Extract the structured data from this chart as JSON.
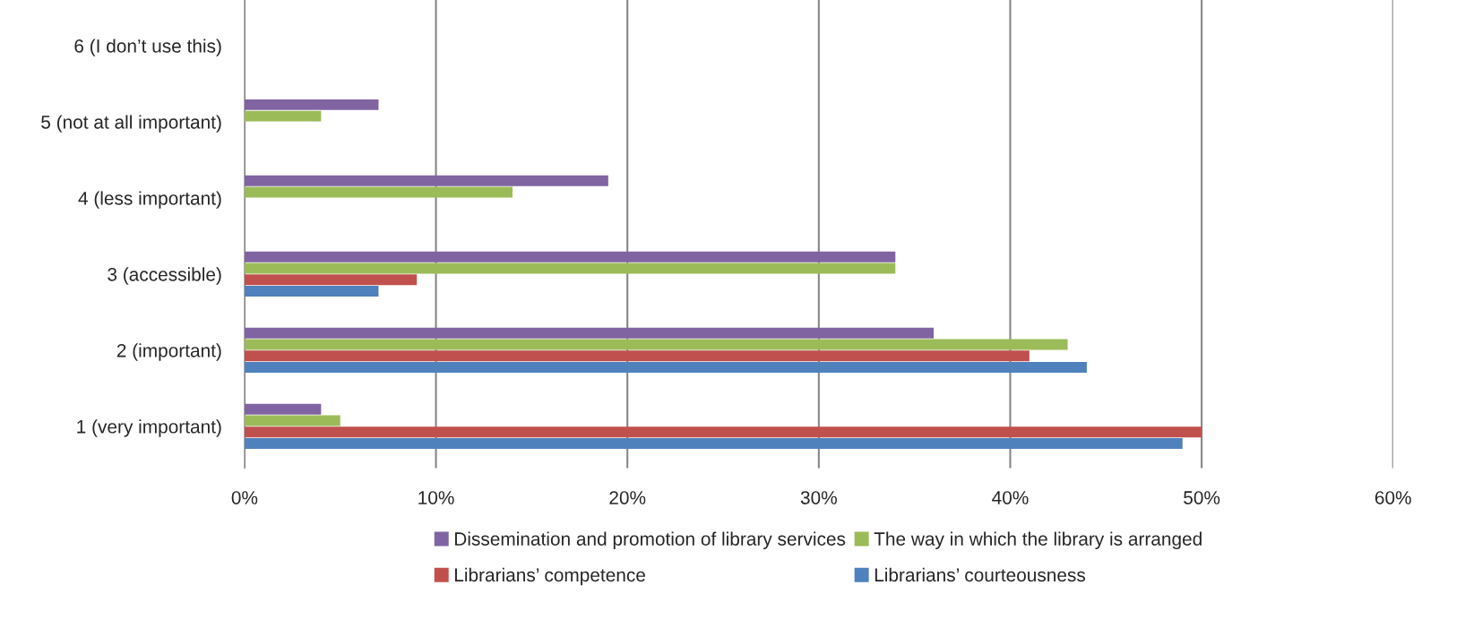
{
  "chart_data": {
    "type": "bar",
    "orientation": "horizontal",
    "categories": [
      "6 (I don’t use this)",
      "5 (not at all important)",
      "4 (less important)",
      "3 (accessible)",
      "2 (important)",
      "1 (very important)"
    ],
    "series": [
      {
        "name": "Dissemination and promotion of library services",
        "color": "#8064a2",
        "values": [
          null,
          7,
          19,
          34,
          36,
          4
        ]
      },
      {
        "name": "The way in which the library is arranged",
        "color": "#9bbb59",
        "values": [
          null,
          4,
          14,
          34,
          43,
          5
        ]
      },
      {
        "name": "Librarians’ competence",
        "color": "#c0504d",
        "values": [
          null,
          null,
          null,
          9,
          41,
          50
        ]
      },
      {
        "name": "Librarians’ courteousness",
        "color": "#4f81bd",
        "values": [
          null,
          null,
          null,
          7,
          44,
          49
        ]
      }
    ],
    "xlim": [
      0,
      60
    ],
    "xticks": [
      {
        "value": 0,
        "label": "0%"
      },
      {
        "value": 10,
        "label": "10%"
      },
      {
        "value": 20,
        "label": "20%"
      },
      {
        "value": 30,
        "label": "30%"
      },
      {
        "value": 40,
        "label": "40%"
      },
      {
        "value": 50,
        "label": "50%"
      },
      {
        "value": 60,
        "label": "60%"
      }
    ],
    "grid": "x",
    "legend": "bottom"
  }
}
